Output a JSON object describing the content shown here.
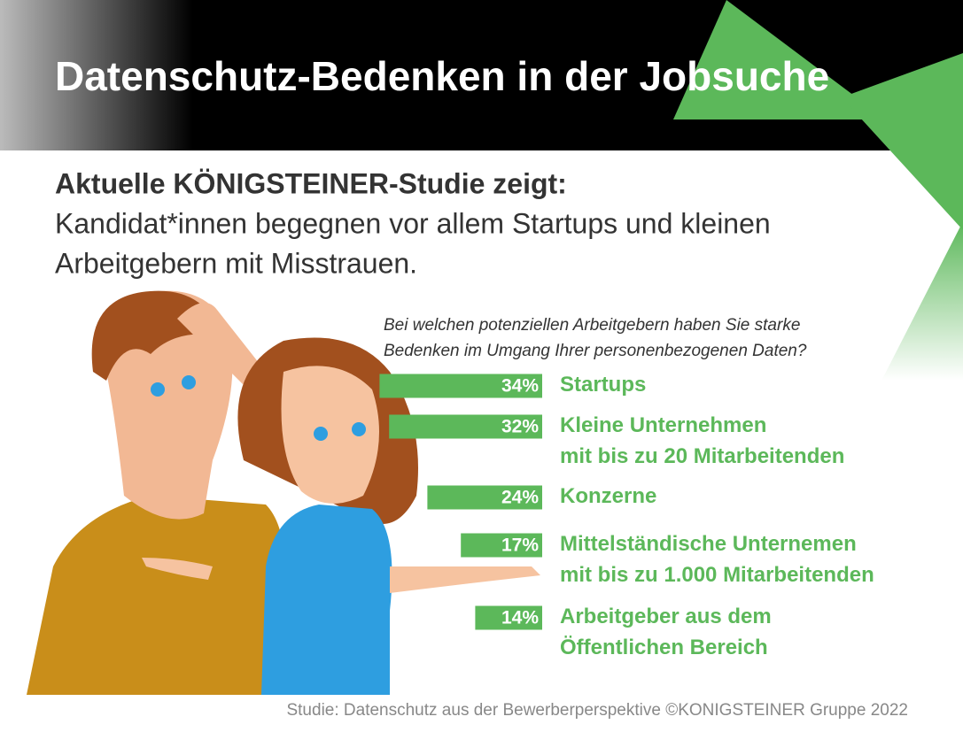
{
  "header": {
    "title": "Datenschutz-Bedenken in der Jobsuche"
  },
  "intro": {
    "lead": "Aktuelle KÖNIGSTEINER-Studie zeigt:",
    "lines": [
      "Kandidat*innen begegnen vor allem Startups und kleinen",
      "Arbeitgebern mit Misstrauen."
    ]
  },
  "chart_data": {
    "type": "bar",
    "orientation": "horizontal",
    "title": [
      "Bei welchen potenziellen Arbeitgebern haben Sie starke",
      "Bedenken im Umgang Ihrer personenbezogenen Daten?"
    ],
    "categories": [
      "Startups",
      "Kleine Unternehmen\nmit bis zu 20 Mitarbeitenden",
      "Konzerne",
      "Mittelständische Unternemen\nmit bis zu 1.000 Mitarbeitenden",
      "Arbeitgeber aus dem\nÖffentlichen Bereich"
    ],
    "values": [
      34,
      32,
      24,
      17,
      14
    ],
    "value_labels": [
      "34%",
      "32%",
      "24%",
      "17%",
      "14%"
    ],
    "color": "#5cb85a"
  },
  "footer": {
    "source": "Studie: Datenschutz aus der Bewerberperspektive ©KONIGSTEINER Gruppe 2022"
  }
}
